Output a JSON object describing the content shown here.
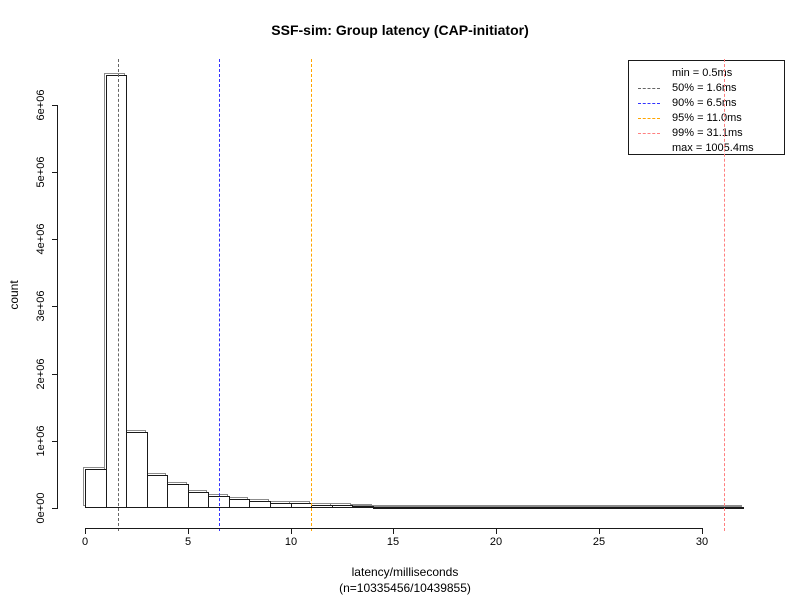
{
  "title": "SSF-sim: Group latency (CAP-initiator)",
  "chart_data": {
    "type": "bar",
    "subtype": "histogram",
    "title": "SSF-sim: Group latency (CAP-initiator)",
    "xlabel": "latency/milliseconds",
    "xlabel2": "(n=10335456/10439855)",
    "ylabel": "count",
    "grid": false,
    "legend_position": "top-right",
    "xlim": [
      0,
      32
    ],
    "ylim": [
      0,
      6500000
    ],
    "x_ticks": [
      {
        "value": 0,
        "label": "0"
      },
      {
        "value": 5,
        "label": "5"
      },
      {
        "value": 10,
        "label": "10"
      },
      {
        "value": 15,
        "label": "15"
      },
      {
        "value": 20,
        "label": "20"
      },
      {
        "value": 25,
        "label": "25"
      },
      {
        "value": 30,
        "label": "30"
      }
    ],
    "y_ticks": [
      {
        "value": 0,
        "label": "0e+00"
      },
      {
        "value": 1000000,
        "label": "1e+06"
      },
      {
        "value": 2000000,
        "label": "2e+06"
      },
      {
        "value": 3000000,
        "label": "3e+06"
      },
      {
        "value": 4000000,
        "label": "4e+06"
      },
      {
        "value": 5000000,
        "label": "5e+06"
      },
      {
        "value": 6000000,
        "label": "6e+06"
      }
    ],
    "bin_width_ms": 1,
    "bins_start_ms": [
      0,
      1,
      2,
      3,
      4,
      5,
      6,
      7,
      8,
      9,
      10,
      11,
      12,
      13,
      14,
      15,
      16,
      17,
      18,
      19,
      20,
      21,
      22,
      23,
      24,
      25,
      26,
      27,
      28,
      29,
      30,
      31
    ],
    "counts": [
      585000,
      6440000,
      1130000,
      495000,
      350000,
      240000,
      185000,
      135000,
      103000,
      80000,
      68000,
      50000,
      38000,
      30000,
      22000,
      18000,
      14000,
      11000,
      9000,
      8000,
      7000,
      6000,
      5500,
      5000,
      4500,
      4000,
      3500,
      3000,
      2800,
      2500,
      2300,
      2000
    ],
    "percentile_lines": [
      {
        "name": "50%",
        "value_ms": 1.6,
        "color": "#666666"
      },
      {
        "name": "90%",
        "value_ms": 6.5,
        "color": "#3333ff"
      },
      {
        "name": "95%",
        "value_ms": 11.0,
        "color": "#ffa500"
      },
      {
        "name": "99%",
        "value_ms": 31.1,
        "color": "#ff8080"
      }
    ],
    "legend": {
      "rows": [
        {
          "text": "min = 0.5ms",
          "dash_color": null
        },
        {
          "text": "50% = 1.6ms",
          "dash_color": "#666666"
        },
        {
          "text": "90% = 6.5ms",
          "dash_color": "#3333ff"
        },
        {
          "text": "95% = 11.0ms",
          "dash_color": "#ffa500"
        },
        {
          "text": "99% = 31.1ms",
          "dash_color": "#ff8080"
        },
        {
          "text": "max = 1005.4ms",
          "dash_color": null
        }
      ]
    }
  }
}
